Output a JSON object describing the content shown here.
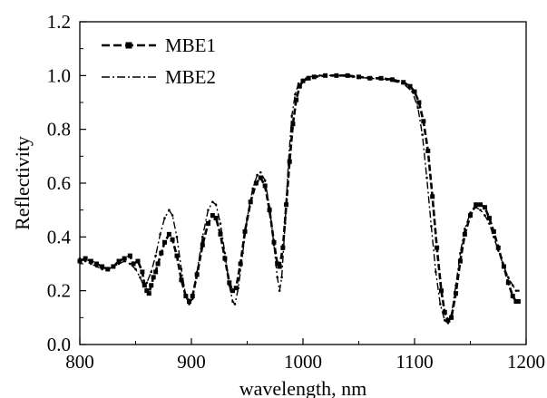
{
  "chart_data": {
    "type": "line",
    "xlabel": "wavelength, nm",
    "ylabel": "Reflectivity",
    "xlim": [
      800,
      1200
    ],
    "ylim": [
      0.0,
      1.2
    ],
    "x_ticks": [
      "800",
      "900",
      "1000",
      "1100",
      "1200"
    ],
    "y_ticks": [
      "0.0",
      "0.2",
      "0.4",
      "0.6",
      "0.8",
      "1.0",
      "1.2"
    ],
    "grid": false,
    "legend_position": "top-left",
    "series": [
      {
        "name": "MBE1",
        "style": "dashed-square-markers",
        "color": "#000000",
        "points": [
          [
            800,
            0.31
          ],
          [
            805,
            0.32
          ],
          [
            810,
            0.31
          ],
          [
            815,
            0.3
          ],
          [
            820,
            0.29
          ],
          [
            825,
            0.28
          ],
          [
            830,
            0.29
          ],
          [
            835,
            0.31
          ],
          [
            840,
            0.32
          ],
          [
            845,
            0.33
          ],
          [
            848,
            0.3
          ],
          [
            852,
            0.31
          ],
          [
            856,
            0.27
          ],
          [
            858,
            0.22
          ],
          [
            860,
            0.2
          ],
          [
            862,
            0.19
          ],
          [
            864,
            0.22
          ],
          [
            866,
            0.25
          ],
          [
            868,
            0.27
          ],
          [
            870,
            0.3
          ],
          [
            873,
            0.34
          ],
          [
            876,
            0.38
          ],
          [
            880,
            0.41
          ],
          [
            883,
            0.39
          ],
          [
            887,
            0.33
          ],
          [
            891,
            0.24
          ],
          [
            895,
            0.18
          ],
          [
            898,
            0.16
          ],
          [
            901,
            0.18
          ],
          [
            905,
            0.26
          ],
          [
            910,
            0.37
          ],
          [
            915,
            0.45
          ],
          [
            919,
            0.48
          ],
          [
            922,
            0.47
          ],
          [
            926,
            0.41
          ],
          [
            930,
            0.32
          ],
          [
            934,
            0.23
          ],
          [
            937,
            0.2
          ],
          [
            940,
            0.21
          ],
          [
            944,
            0.3
          ],
          [
            948,
            0.42
          ],
          [
            953,
            0.53
          ],
          [
            958,
            0.6
          ],
          [
            962,
            0.62
          ],
          [
            966,
            0.59
          ],
          [
            970,
            0.5
          ],
          [
            974,
            0.38
          ],
          [
            977,
            0.3
          ],
          [
            979,
            0.29
          ],
          [
            982,
            0.36
          ],
          [
            985,
            0.52
          ],
          [
            988,
            0.68
          ],
          [
            991,
            0.82
          ],
          [
            994,
            0.91
          ],
          [
            997,
            0.96
          ],
          [
            1000,
            0.98
          ],
          [
            1005,
            0.99
          ],
          [
            1010,
            0.995
          ],
          [
            1020,
            1.0
          ],
          [
            1030,
            1.0
          ],
          [
            1040,
            1.0
          ],
          [
            1050,
            0.995
          ],
          [
            1060,
            0.99
          ],
          [
            1070,
            0.99
          ],
          [
            1080,
            0.985
          ],
          [
            1090,
            0.975
          ],
          [
            1096,
            0.96
          ],
          [
            1100,
            0.94
          ],
          [
            1104,
            0.9
          ],
          [
            1108,
            0.83
          ],
          [
            1112,
            0.72
          ],
          [
            1116,
            0.55
          ],
          [
            1120,
            0.36
          ],
          [
            1124,
            0.2
          ],
          [
            1127,
            0.12
          ],
          [
            1130,
            0.09
          ],
          [
            1133,
            0.1
          ],
          [
            1137,
            0.19
          ],
          [
            1141,
            0.31
          ],
          [
            1145,
            0.41
          ],
          [
            1150,
            0.48
          ],
          [
            1155,
            0.52
          ],
          [
            1159,
            0.52
          ],
          [
            1163,
            0.51
          ],
          [
            1167,
            0.47
          ],
          [
            1171,
            0.42
          ],
          [
            1175,
            0.36
          ],
          [
            1180,
            0.29
          ],
          [
            1184,
            0.23
          ],
          [
            1188,
            0.18
          ],
          [
            1191,
            0.16
          ],
          [
            1193,
            0.16
          ]
        ]
      },
      {
        "name": "MBE2",
        "style": "dash-dot",
        "color": "#000000",
        "points": [
          [
            800,
            0.32
          ],
          [
            805,
            0.31
          ],
          [
            810,
            0.3
          ],
          [
            815,
            0.29
          ],
          [
            820,
            0.28
          ],
          [
            825,
            0.28
          ],
          [
            830,
            0.29
          ],
          [
            835,
            0.3
          ],
          [
            840,
            0.31
          ],
          [
            845,
            0.3
          ],
          [
            850,
            0.28
          ],
          [
            854,
            0.25
          ],
          [
            857,
            0.22
          ],
          [
            860,
            0.23
          ],
          [
            864,
            0.27
          ],
          [
            868,
            0.33
          ],
          [
            872,
            0.41
          ],
          [
            876,
            0.47
          ],
          [
            880,
            0.5
          ],
          [
            883,
            0.48
          ],
          [
            887,
            0.4
          ],
          [
            891,
            0.28
          ],
          [
            895,
            0.18
          ],
          [
            898,
            0.15
          ],
          [
            901,
            0.17
          ],
          [
            905,
            0.27
          ],
          [
            910,
            0.4
          ],
          [
            915,
            0.5
          ],
          [
            919,
            0.53
          ],
          [
            922,
            0.52
          ],
          [
            926,
            0.45
          ],
          [
            930,
            0.34
          ],
          [
            934,
            0.22
          ],
          [
            937,
            0.16
          ],
          [
            939,
            0.15
          ],
          [
            942,
            0.21
          ],
          [
            946,
            0.34
          ],
          [
            950,
            0.47
          ],
          [
            955,
            0.58
          ],
          [
            959,
            0.63
          ],
          [
            962,
            0.64
          ],
          [
            966,
            0.61
          ],
          [
            970,
            0.51
          ],
          [
            974,
            0.37
          ],
          [
            977,
            0.25
          ],
          [
            979,
            0.2
          ],
          [
            981,
            0.25
          ],
          [
            984,
            0.45
          ],
          [
            987,
            0.68
          ],
          [
            990,
            0.85
          ],
          [
            993,
            0.93
          ],
          [
            996,
            0.97
          ],
          [
            1000,
            0.985
          ],
          [
            1005,
            0.995
          ],
          [
            1015,
            1.0
          ],
          [
            1030,
            1.0
          ],
          [
            1045,
            0.995
          ],
          [
            1060,
            0.99
          ],
          [
            1075,
            0.985
          ],
          [
            1090,
            0.97
          ],
          [
            1098,
            0.94
          ],
          [
            1103,
            0.88
          ],
          [
            1107,
            0.78
          ],
          [
            1111,
            0.62
          ],
          [
            1115,
            0.44
          ],
          [
            1119,
            0.27
          ],
          [
            1123,
            0.15
          ],
          [
            1127,
            0.09
          ],
          [
            1130,
            0.08
          ],
          [
            1133,
            0.11
          ],
          [
            1137,
            0.22
          ],
          [
            1141,
            0.34
          ],
          [
            1145,
            0.43
          ],
          [
            1150,
            0.49
          ],
          [
            1155,
            0.51
          ],
          [
            1159,
            0.5
          ],
          [
            1163,
            0.48
          ],
          [
            1167,
            0.45
          ],
          [
            1171,
            0.4
          ],
          [
            1175,
            0.35
          ],
          [
            1180,
            0.29
          ],
          [
            1184,
            0.25
          ],
          [
            1188,
            0.22
          ],
          [
            1191,
            0.2
          ],
          [
            1193,
            0.2
          ]
        ]
      }
    ]
  }
}
